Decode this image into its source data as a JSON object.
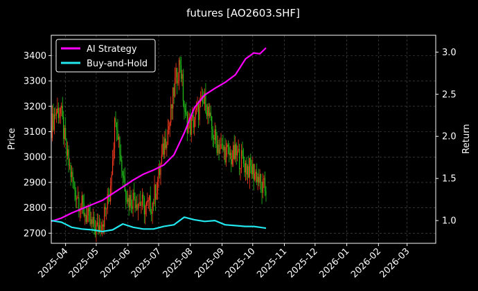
{
  "chart_data": {
    "type": "line",
    "title": "futures [AO2603.SHF]",
    "xlabel": "",
    "ylabel": "Price",
    "y2label": "Return",
    "background": "#000000",
    "grid": true,
    "legend_position": "top-left",
    "x_ticks": [
      "2025-04",
      "2025-05",
      "2025-06",
      "2025-07",
      "2025-08",
      "2025-09",
      "2025-10",
      "2025-11",
      "2025-12",
      "2026-01",
      "2026-02",
      "2026-03"
    ],
    "x_range": [
      "2025-03-18",
      "2026-03-29"
    ],
    "y_ticks": [
      2700,
      2800,
      2900,
      3000,
      3100,
      3200,
      3300,
      3400
    ],
    "ylim": [
      2660,
      3480
    ],
    "y2_ticks": [
      1.0,
      1.5,
      2.0,
      2.5,
      3.0
    ],
    "y2lim": [
      0.73,
      3.2
    ],
    "candles": {
      "up_color": "#ff3b1f",
      "down_color": "#22c41a",
      "dates": [
        "2025-03-18",
        "2025-03-22",
        "2025-03-27",
        "2025-04-02",
        "2025-04-08",
        "2025-04-14",
        "2025-04-20",
        "2025-04-26",
        "2025-05-02",
        "2025-05-08",
        "2025-05-14",
        "2025-05-20",
        "2025-05-26",
        "2025-06-01",
        "2025-06-07",
        "2025-06-13",
        "2025-06-19",
        "2025-06-25",
        "2025-07-01",
        "2025-07-07",
        "2025-07-12",
        "2025-07-17",
        "2025-07-22",
        "2025-07-27",
        "2025-08-01",
        "2025-08-06",
        "2025-08-11",
        "2025-08-16",
        "2025-08-21",
        "2025-08-26",
        "2025-08-31",
        "2025-09-05",
        "2025-09-10",
        "2025-09-15",
        "2025-09-20",
        "2025-09-25",
        "2025-09-30",
        "2025-10-05",
        "2025-10-10",
        "2025-10-14"
      ],
      "values": [
        3120,
        3175,
        3190,
        3010,
        2900,
        2830,
        2780,
        2730,
        2715,
        2760,
        2850,
        3180,
        2960,
        2830,
        2840,
        2820,
        2800,
        2820,
        2920,
        3060,
        3140,
        3290,
        3380,
        3150,
        3120,
        3160,
        3200,
        3220,
        3120,
        3060,
        3030,
        3020,
        3000,
        3010,
        2990,
        2960,
        2950,
        2930,
        2880,
        2870
      ]
    },
    "series": [
      {
        "name": "AI Strategy",
        "color": "#ff00ff",
        "axis": "right",
        "x": [
          "2025-03-18",
          "2025-03-28",
          "2025-04-07",
          "2025-04-17",
          "2025-04-27",
          "2025-05-07",
          "2025-05-17",
          "2025-05-27",
          "2025-06-06",
          "2025-06-16",
          "2025-06-26",
          "2025-07-06",
          "2025-07-16",
          "2025-07-26",
          "2025-08-05",
          "2025-08-15",
          "2025-08-25",
          "2025-09-04",
          "2025-09-14",
          "2025-09-24",
          "2025-10-02",
          "2025-10-08",
          "2025-10-14"
        ],
        "values": [
          0.99,
          1.03,
          1.09,
          1.14,
          1.19,
          1.24,
          1.32,
          1.4,
          1.48,
          1.55,
          1.6,
          1.66,
          1.78,
          2.04,
          2.34,
          2.49,
          2.57,
          2.64,
          2.73,
          2.92,
          2.99,
          2.98,
          3.05
        ]
      },
      {
        "name": "Buy-and-Hold",
        "color": "#22e8f0",
        "axis": "right",
        "x": [
          "2025-03-18",
          "2025-03-28",
          "2025-04-07",
          "2025-04-17",
          "2025-04-27",
          "2025-05-07",
          "2025-05-17",
          "2025-05-27",
          "2025-06-06",
          "2025-06-16",
          "2025-06-26",
          "2025-07-06",
          "2025-07-16",
          "2025-07-26",
          "2025-08-05",
          "2025-08-15",
          "2025-08-25",
          "2025-09-04",
          "2025-09-14",
          "2025-09-24",
          "2025-10-02",
          "2025-10-08",
          "2025-10-14"
        ],
        "values": [
          1.0,
          0.98,
          0.92,
          0.9,
          0.89,
          0.87,
          0.89,
          0.96,
          0.92,
          0.9,
          0.9,
          0.93,
          0.95,
          1.04,
          1.01,
          0.99,
          1.0,
          0.95,
          0.94,
          0.93,
          0.93,
          0.92,
          0.91
        ]
      }
    ]
  }
}
